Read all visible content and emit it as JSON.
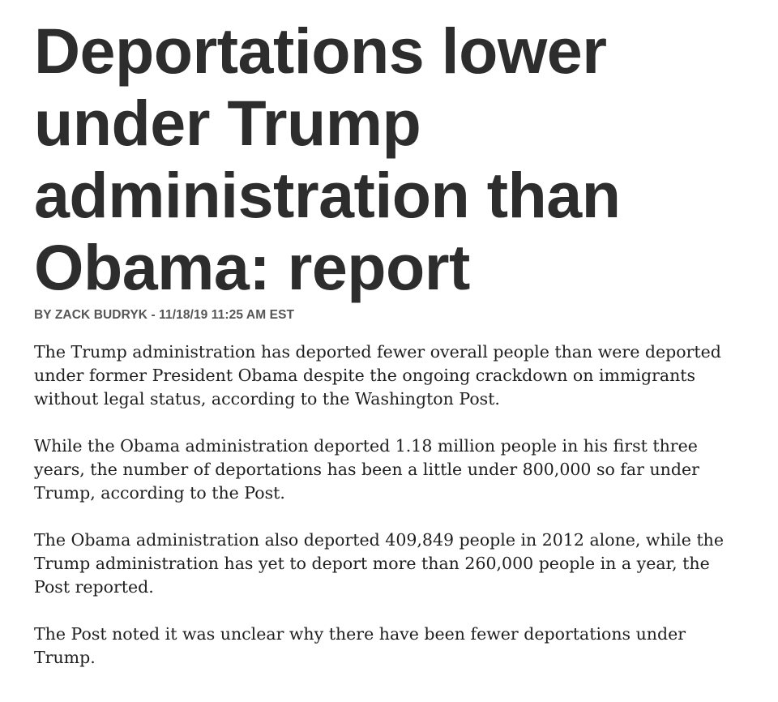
{
  "article": {
    "headline": "Deportations lower under Trump administration than Obama: report",
    "byline": "BY ZACK BUDRYK - 11/18/19 11:25 AM EST",
    "paragraphs": [
      "The Trump administration has deported fewer overall people than were deported under former President Obama despite the ongoing crackdown on immigrants without legal status, according to the Washington Post.",
      "While the Obama administration deported 1.18 million people in his first three years, the number of deportations has been a little under 800,000 so far under Trump, according to the Post.",
      "The Obama administration also deported 409,849 people in 2012 alone, while the Trump administration has yet to deport more than 260,000 people in a year, the Post reported.",
      "The Post noted it was unclear why there have been fewer deportations under Trump."
    ]
  }
}
